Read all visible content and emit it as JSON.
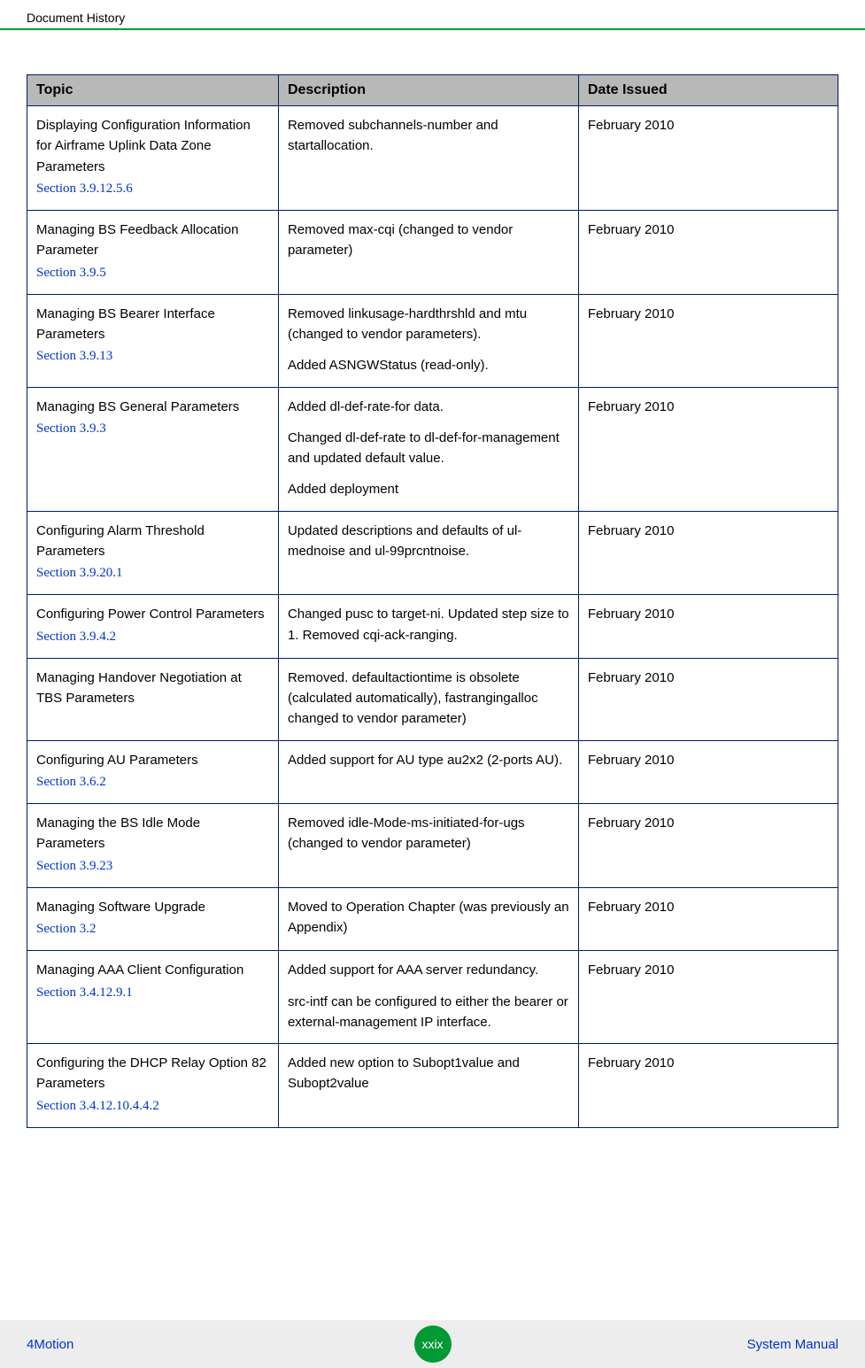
{
  "header": {
    "title": "Document History"
  },
  "table": {
    "columns": [
      "Topic",
      "Description",
      "Date Issued"
    ],
    "col_widths": [
      "31%",
      "37%",
      "32%"
    ],
    "header_bg": "#b8b8b8",
    "border_color": "#001a66",
    "link_color": "#0033cc",
    "rows": [
      {
        "topic": "Displaying Configuration Information for Airframe Uplink Data Zone Parameters",
        "section": "Section 3.9.12.5.6",
        "desc": [
          "Removed subchannels-number and startallocation."
        ],
        "date": "February 2010"
      },
      {
        "topic": "Managing BS Feedback Allocation Parameter",
        "section": "Section 3.9.5",
        "desc": [
          "Removed max-cqi (changed to vendor parameter)"
        ],
        "date": "February 2010"
      },
      {
        "topic": "Managing BS Bearer Interface Parameters",
        "section": "Section 3.9.13",
        "desc": [
          "Removed linkusage-hardthrshld and mtu (changed to vendor parameters).",
          "Added ASNGWStatus (read-only)."
        ],
        "date": "February 2010"
      },
      {
        "topic": "Managing BS General Parameters",
        "section": "Section 3.9.3",
        "desc": [
          "Added dl-def-rate-for data.",
          "Changed dl-def-rate to dl-def-for-management and updated default value.",
          "Added deployment"
        ],
        "date": "February 2010"
      },
      {
        "topic": "Configuring Alarm Threshold Parameters",
        "section": "Section 3.9.20.1",
        "desc": [
          "Updated descriptions and defaults of ul-mednoise and ul-99prcntnoise."
        ],
        "date": "February 2010"
      },
      {
        "topic": "Configuring Power Control Parameters",
        "section": "Section 3.9.4.2",
        "desc": [
          "Changed pusc to target-ni. Updated step size to 1. Removed cqi-ack-ranging."
        ],
        "date": "February 2010"
      },
      {
        "topic": "Managing Handover Negotiation at TBS Parameters",
        "section": "",
        "desc": [
          "Removed. defaultactiontime is obsolete (calculated automatically), fastrangingalloc changed to vendor parameter)"
        ],
        "date": "February 2010"
      },
      {
        "topic": "Configuring AU Parameters",
        "section": "Section 3.6.2",
        "desc": [
          "Added support for AU type au2x2 (2-ports AU)."
        ],
        "date": "February 2010"
      },
      {
        "topic": "Managing the BS Idle Mode Parameters",
        "section": "Section 3.9.23",
        "desc": [
          "Removed idle-Mode-ms-initiated-for-ugs (changed to vendor parameter)"
        ],
        "date": "February 2010"
      },
      {
        "topic": "Managing Software Upgrade",
        "section": "Section 3.2",
        "desc": [
          "Moved to Operation Chapter (was previously an Appendix)"
        ],
        "date": "February 2010"
      },
      {
        "topic": "Managing AAA Client Configuration",
        "section": "Section 3.4.12.9.1",
        "desc": [
          "Added support for AAA server redundancy.",
          "src-intf can be configured to either the bearer or external-management IP interface."
        ],
        "date": "February 2010"
      },
      {
        "topic": "Configuring the DHCP Relay Option 82 Parameters",
        "section": "Section 3.4.12.10.4.4.2",
        "desc": [
          "Added new option to Subopt1value and Subopt2value"
        ],
        "date": "February 2010"
      }
    ]
  },
  "footer": {
    "left": "4Motion",
    "center": "xxix",
    "right": "System Manual",
    "bg": "#ededed",
    "badge_color": "#009933",
    "link_color": "#0033cc"
  }
}
